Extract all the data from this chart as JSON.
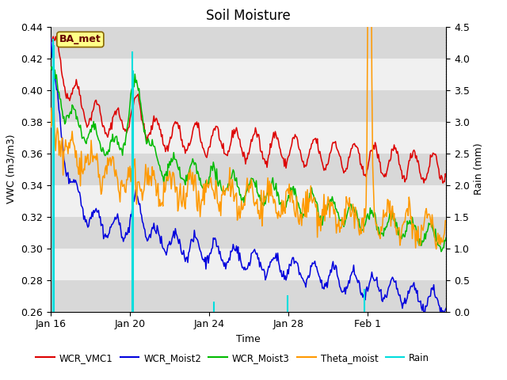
{
  "title": "Soil Moisture",
  "ylabel_left": "VWC (m3/m3)",
  "ylabel_right": "Rain (mm)",
  "xlabel": "Time",
  "ylim_left": [
    0.26,
    0.44
  ],
  "ylim_right": [
    0.0,
    4.5
  ],
  "xtick_labels": [
    "Jan 16",
    "Jan 20",
    "Jan 24",
    "Jan 28",
    "Feb 1"
  ],
  "xtick_positions": [
    0,
    96,
    192,
    288,
    384
  ],
  "station_label": "BA_met",
  "colors": {
    "WCR_VMC1": "#dd0000",
    "WCR_Moist2": "#0000dd",
    "WCR_Moist3": "#00bb00",
    "Theta_moist": "#ff9900",
    "Rain": "#00dddd"
  },
  "legend_labels": [
    "WCR_VMC1",
    "WCR_Moist2",
    "WCR_Moist3",
    "Theta_moist",
    "Rain"
  ],
  "background_color": "#ffffff",
  "band_color_dark": "#d8d8d8",
  "band_color_light": "#f0f0f0",
  "title_fontsize": 12,
  "axis_fontsize": 9,
  "tick_fontsize": 9,
  "n_points": 480
}
